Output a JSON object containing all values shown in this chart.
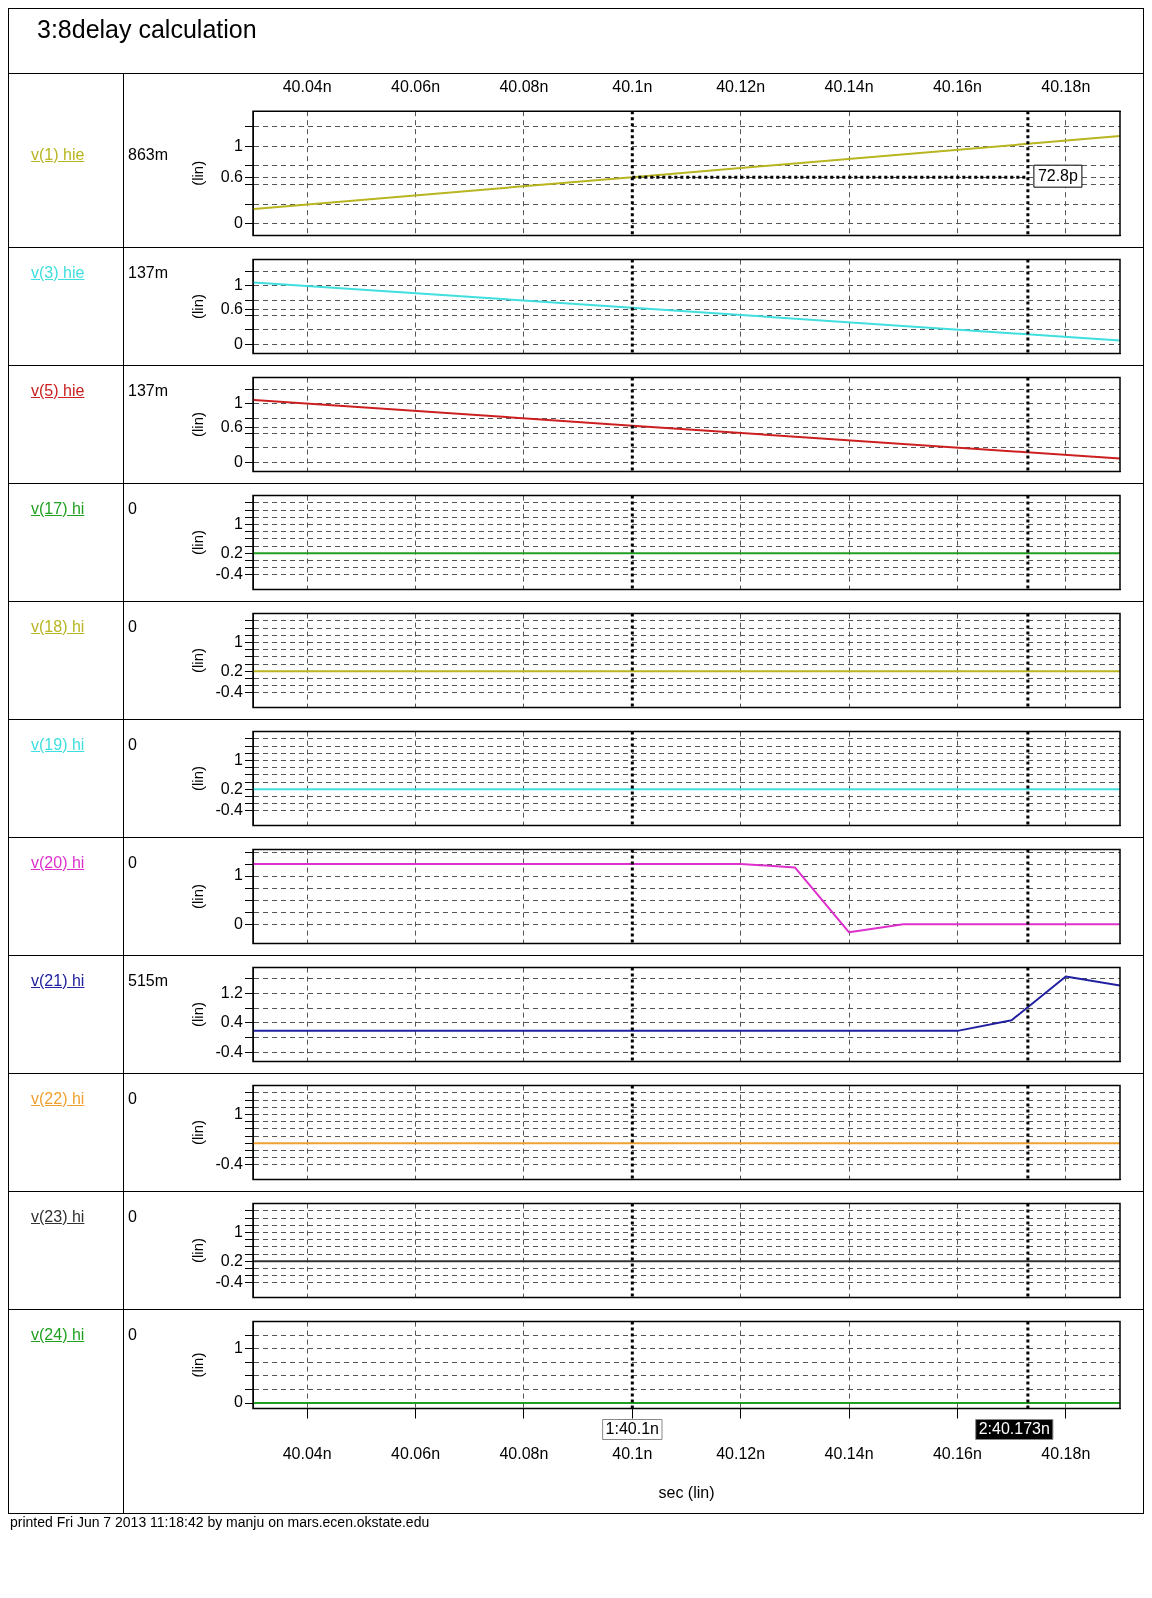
{
  "chart_data": [
    {
      "type": "line",
      "title": "3:8delay calculation",
      "ylabel": "(lin)",
      "xlim": [
        40.03,
        40.19
      ],
      "xticks": [
        {
          "value": 40.04,
          "label": null
        },
        {
          "value": 40.06,
          "label": null
        },
        {
          "value": 40.08,
          "label": null
        },
        {
          "value": 40.1,
          "label": null
        },
        {
          "value": 40.12,
          "label": null
        },
        {
          "value": 40.14,
          "label": null
        },
        {
          "value": 40.16,
          "label": null
        },
        {
          "value": 40.18,
          "label": null
        }
      ],
      "x2lim": [
        40.03,
        40.19
      ],
      "x2ticks": [
        {
          "value": 40.04,
          "label": "40.04n"
        },
        {
          "value": 40.06,
          "label": "40.06n"
        },
        {
          "value": 40.08,
          "label": "40.08n"
        },
        {
          "value": 40.1,
          "label": "40.1n"
        },
        {
          "value": 40.12,
          "label": "40.12n"
        },
        {
          "value": 40.14,
          "label": "40.14n"
        },
        {
          "value": 40.16,
          "label": "40.16n"
        },
        {
          "value": 40.18,
          "label": "40.18n"
        }
      ],
      "ylim": [
        -0.15,
        1.45
      ],
      "yticks": [
        0,
        {
          "value": 0.25,
          "label": null
        },
        {
          "value": 0.5,
          "label": null
        },
        0.6,
        {
          "value": 0.75,
          "label": null
        },
        1,
        {
          "value": 1.25,
          "label": null
        }
      ],
      "tick_labels": "y",
      "grid": true,
      "x": [
        40.03,
        40.1,
        40.19
      ],
      "series": [
        {
          "name": "v(1) hie",
          "color": "#b8b520",
          "values": [
            0.19,
            0.6,
            1.13
          ]
        }
      ],
      "ref_lines": [
        {
          "axis": "x",
          "value": 40.1,
          "line_style": "dotted",
          "color": "#000000"
        },
        {
          "axis": "x",
          "value": 40.173,
          "line_style": "dotted",
          "color": "#000000"
        }
      ],
      "annotations": [
        "863m",
        {
          "text": "72.8p",
          "x": 40.173,
          "y": 0.6
        }
      ]
    },
    {
      "type": "line",
      "ylabel": "(lin)",
      "xlim": [
        40.03,
        40.19
      ],
      "xticks": [
        {
          "value": 40.04,
          "label": null
        },
        {
          "value": 40.06,
          "label": null
        },
        {
          "value": 40.08,
          "label": null
        },
        {
          "value": 40.1,
          "label": null
        },
        {
          "value": 40.12,
          "label": null
        },
        {
          "value": 40.14,
          "label": null
        },
        {
          "value": 40.16,
          "label": null
        },
        {
          "value": 40.18,
          "label": null
        }
      ],
      "ylim": [
        -0.15,
        1.45
      ],
      "yticks": [
        0,
        {
          "value": 0.25,
          "label": null
        },
        {
          "value": 0.5,
          "label": null
        },
        0.6,
        {
          "value": 0.75,
          "label": null
        },
        1,
        {
          "value": 1.25,
          "label": null
        }
      ],
      "tick_labels": "y",
      "grid": true,
      "x": [
        40.03,
        40.1,
        40.19
      ],
      "series": [
        {
          "name": "v(3) hie",
          "color": "#40dede",
          "values": [
            1.06,
            0.63,
            0.07
          ]
        }
      ],
      "ref_lines": [
        {
          "axis": "x",
          "value": 40.1,
          "line_style": "dotted",
          "color": "#000000"
        },
        {
          "axis": "x",
          "value": 40.173,
          "line_style": "dotted",
          "color": "#000000"
        }
      ],
      "annotations": [
        "137m"
      ]
    },
    {
      "type": "line",
      "ylabel": "(lin)",
      "xlim": [
        40.03,
        40.19
      ],
      "xticks": [
        {
          "value": 40.04,
          "label": null
        },
        {
          "value": 40.06,
          "label": null
        },
        {
          "value": 40.08,
          "label": null
        },
        {
          "value": 40.1,
          "label": null
        },
        {
          "value": 40.12,
          "label": null
        },
        {
          "value": 40.14,
          "label": null
        },
        {
          "value": 40.16,
          "label": null
        },
        {
          "value": 40.18,
          "label": null
        }
      ],
      "ylim": [
        -0.15,
        1.45
      ],
      "yticks": [
        0,
        {
          "value": 0.25,
          "label": null
        },
        {
          "value": 0.5,
          "label": null
        },
        0.6,
        {
          "value": 0.75,
          "label": null
        },
        1,
        {
          "value": 1.25,
          "label": null
        }
      ],
      "tick_labels": "y",
      "grid": true,
      "x": [
        40.03,
        40.1,
        40.19
      ],
      "series": [
        {
          "name": "v(5) hie",
          "color": "#cc2020",
          "values": [
            1.07,
            0.63,
            0.07
          ]
        }
      ],
      "ref_lines": [
        {
          "axis": "x",
          "value": 40.1,
          "line_style": "dotted",
          "color": "#000000"
        },
        {
          "axis": "x",
          "value": 40.173,
          "line_style": "dotted",
          "color": "#000000"
        }
      ],
      "annotations": [
        "137m"
      ]
    },
    {
      "type": "line",
      "ylabel": "(lin)",
      "xlim": [
        40.03,
        40.19
      ],
      "xticks": [
        {
          "value": 40.04,
          "label": null
        },
        {
          "value": 40.06,
          "label": null
        },
        {
          "value": 40.08,
          "label": null
        },
        {
          "value": 40.1,
          "label": null
        },
        {
          "value": 40.12,
          "label": null
        },
        {
          "value": 40.14,
          "label": null
        },
        {
          "value": 40.16,
          "label": null
        },
        {
          "value": 40.18,
          "label": null
        }
      ],
      "ylim": [
        -0.8,
        1.8
      ],
      "yticks": [
        -0.4,
        {
          "value": -0.2,
          "label": null
        },
        {
          "value": 0,
          "label": null
        },
        0.2,
        {
          "value": 0.4,
          "label": null
        },
        {
          "value": 0.6,
          "label": null
        },
        {
          "value": 0.8,
          "label": null
        },
        1,
        {
          "value": 1.2,
          "label": null
        },
        {
          "value": 1.4,
          "label": null
        },
        {
          "value": 1.6,
          "label": null
        }
      ],
      "tick_labels": "y",
      "grid": true,
      "x": [
        40.03,
        40.19
      ],
      "series": [
        {
          "name": "v(17) hi",
          "color": "#20a020",
          "values": [
            0.2,
            0.2
          ]
        }
      ],
      "ref_lines": [
        {
          "axis": "x",
          "value": 40.1,
          "line_style": "dotted",
          "color": "#000000"
        },
        {
          "axis": "x",
          "value": 40.173,
          "line_style": "dotted",
          "color": "#000000"
        }
      ],
      "annotations": [
        "0"
      ]
    },
    {
      "type": "line",
      "ylabel": "(lin)",
      "xlim": [
        40.03,
        40.19
      ],
      "xticks": [
        {
          "value": 40.04,
          "label": null
        },
        {
          "value": 40.06,
          "label": null
        },
        {
          "value": 40.08,
          "label": null
        },
        {
          "value": 40.1,
          "label": null
        },
        {
          "value": 40.12,
          "label": null
        },
        {
          "value": 40.14,
          "label": null
        },
        {
          "value": 40.16,
          "label": null
        },
        {
          "value": 40.18,
          "label": null
        }
      ],
      "ylim": [
        -0.8,
        1.8
      ],
      "yticks": [
        -0.4,
        {
          "value": -0.2,
          "label": null
        },
        {
          "value": 0,
          "label": null
        },
        0.2,
        {
          "value": 0.4,
          "label": null
        },
        {
          "value": 0.6,
          "label": null
        },
        {
          "value": 0.8,
          "label": null
        },
        1,
        {
          "value": 1.2,
          "label": null
        },
        {
          "value": 1.4,
          "label": null
        },
        {
          "value": 1.6,
          "label": null
        }
      ],
      "tick_labels": "y",
      "grid": true,
      "x": [
        40.03,
        40.19
      ],
      "series": [
        {
          "name": "v(18) hi",
          "color": "#b8b520",
          "values": [
            0.2,
            0.2
          ]
        }
      ],
      "ref_lines": [
        {
          "axis": "x",
          "value": 40.1,
          "line_style": "dotted",
          "color": "#000000"
        },
        {
          "axis": "x",
          "value": 40.173,
          "line_style": "dotted",
          "color": "#000000"
        }
      ],
      "annotations": [
        "0"
      ]
    },
    {
      "type": "line",
      "ylabel": "(lin)",
      "xlim": [
        40.03,
        40.19
      ],
      "xticks": [
        {
          "value": 40.04,
          "label": null
        },
        {
          "value": 40.06,
          "label": null
        },
        {
          "value": 40.08,
          "label": null
        },
        {
          "value": 40.1,
          "label": null
        },
        {
          "value": 40.12,
          "label": null
        },
        {
          "value": 40.14,
          "label": null
        },
        {
          "value": 40.16,
          "label": null
        },
        {
          "value": 40.18,
          "label": null
        }
      ],
      "ylim": [
        -0.8,
        1.8
      ],
      "yticks": [
        -0.4,
        {
          "value": -0.2,
          "label": null
        },
        {
          "value": 0,
          "label": null
        },
        0.2,
        {
          "value": 0.4,
          "label": null
        },
        {
          "value": 0.6,
          "label": null
        },
        {
          "value": 0.8,
          "label": null
        },
        1,
        {
          "value": 1.2,
          "label": null
        },
        {
          "value": 1.4,
          "label": null
        },
        {
          "value": 1.6,
          "label": null
        }
      ],
      "tick_labels": "y",
      "grid": true,
      "x": [
        40.03,
        40.19
      ],
      "series": [
        {
          "name": "v(19) hi",
          "color": "#40dede",
          "values": [
            0.2,
            0.2
          ]
        }
      ],
      "ref_lines": [
        {
          "axis": "x",
          "value": 40.1,
          "line_style": "dotted",
          "color": "#000000"
        },
        {
          "axis": "x",
          "value": 40.173,
          "line_style": "dotted",
          "color": "#000000"
        }
      ],
      "annotations": [
        "0"
      ]
    },
    {
      "type": "line",
      "ylabel": "(lin)",
      "xlim": [
        40.03,
        40.19
      ],
      "xticks": [
        {
          "value": 40.04,
          "label": null
        },
        {
          "value": 40.06,
          "label": null
        },
        {
          "value": 40.08,
          "label": null
        },
        {
          "value": 40.1,
          "label": null
        },
        {
          "value": 40.12,
          "label": null
        },
        {
          "value": 40.14,
          "label": null
        },
        {
          "value": 40.16,
          "label": null
        },
        {
          "value": 40.18,
          "label": null
        }
      ],
      "ylim": [
        -0.4,
        1.55
      ],
      "yticks": [
        0,
        {
          "value": 0.25,
          "label": null
        },
        {
          "value": 0.5,
          "label": null
        },
        {
          "value": 0.75,
          "label": null
        },
        1,
        {
          "value": 1.25,
          "label": null
        },
        {
          "value": 1.5,
          "label": null
        }
      ],
      "tick_labels": "y",
      "grid": true,
      "x": [
        40.03,
        40.12,
        40.13,
        40.14,
        40.15,
        40.19
      ],
      "series": [
        {
          "name": "v(20) hi",
          "color": "#dd30cc",
          "values": [
            1.25,
            1.25,
            1.18,
            -0.17,
            0,
            0
          ]
        }
      ],
      "ref_lines": [
        {
          "axis": "x",
          "value": 40.1,
          "line_style": "dotted",
          "color": "#000000"
        },
        {
          "axis": "x",
          "value": 40.173,
          "line_style": "dotted",
          "color": "#000000"
        }
      ],
      "annotations": [
        "0"
      ]
    },
    {
      "type": "line",
      "ylabel": "(lin)",
      "xlim": [
        40.03,
        40.19
      ],
      "xticks": [
        {
          "value": 40.04,
          "label": null
        },
        {
          "value": 40.06,
          "label": null
        },
        {
          "value": 40.08,
          "label": null
        },
        {
          "value": 40.1,
          "label": null
        },
        {
          "value": 40.12,
          "label": null
        },
        {
          "value": 40.14,
          "label": null
        },
        {
          "value": 40.16,
          "label": null
        },
        {
          "value": 40.18,
          "label": null
        }
      ],
      "ylim": [
        -0.65,
        1.9
      ],
      "yticks": [
        -0.4,
        {
          "value": 0,
          "label": null
        },
        0.4,
        {
          "value": 0.8,
          "label": null
        },
        1.2,
        {
          "value": 1.6,
          "label": null
        }
      ],
      "tick_labels": "y",
      "grid": true,
      "x": [
        40.03,
        40.16,
        40.17,
        40.18,
        40.19
      ],
      "series": [
        {
          "name": "v(21) hi",
          "color": "#2020a0",
          "values": [
            0.18,
            0.18,
            0.47,
            1.66,
            1.41
          ]
        }
      ],
      "ref_lines": [
        {
          "axis": "x",
          "value": 40.1,
          "line_style": "dotted",
          "color": "#000000"
        },
        {
          "axis": "x",
          "value": 40.173,
          "line_style": "dotted",
          "color": "#000000"
        }
      ],
      "annotations": [
        "515m"
      ]
    },
    {
      "type": "line",
      "ylabel": "(lin)",
      "xlim": [
        40.03,
        40.19
      ],
      "xticks": [
        {
          "value": 40.04,
          "label": null
        },
        {
          "value": 40.06,
          "label": null
        },
        {
          "value": 40.08,
          "label": null
        },
        {
          "value": 40.1,
          "label": null
        },
        {
          "value": 40.12,
          "label": null
        },
        {
          "value": 40.14,
          "label": null
        },
        {
          "value": 40.16,
          "label": null
        },
        {
          "value": 40.18,
          "label": null
        }
      ],
      "ylim": [
        -0.8,
        1.8
      ],
      "yticks": [
        -0.4,
        {
          "value": -0.2,
          "label": null
        },
        {
          "value": 0,
          "label": null
        },
        {
          "value": 0.2,
          "label": null
        },
        {
          "value": 0.4,
          "label": null
        },
        {
          "value": 0.6,
          "label": null
        },
        {
          "value": 0.8,
          "label": null
        },
        1,
        {
          "value": 1.2,
          "label": null
        },
        {
          "value": 1.4,
          "label": null
        },
        {
          "value": 1.6,
          "label": null
        }
      ],
      "tick_labels": "y",
      "grid": true,
      "x": [
        40.03,
        40.19
      ],
      "series": [
        {
          "name": "v(22) hi",
          "color": "#f0a030",
          "values": [
            0.2,
            0.2
          ]
        }
      ],
      "ref_lines": [
        {
          "axis": "x",
          "value": 40.1,
          "line_style": "dotted",
          "color": "#000000"
        },
        {
          "axis": "x",
          "value": 40.173,
          "line_style": "dotted",
          "color": "#000000"
        }
      ],
      "annotations": [
        "0"
      ]
    },
    {
      "type": "line",
      "ylabel": "(lin)",
      "xlim": [
        40.03,
        40.19
      ],
      "xticks": [
        {
          "value": 40.04,
          "label": null
        },
        {
          "value": 40.06,
          "label": null
        },
        {
          "value": 40.08,
          "label": null
        },
        {
          "value": 40.1,
          "label": null
        },
        {
          "value": 40.12,
          "label": null
        },
        {
          "value": 40.14,
          "label": null
        },
        {
          "value": 40.16,
          "label": null
        },
        {
          "value": 40.18,
          "label": null
        }
      ],
      "ylim": [
        -0.8,
        1.8
      ],
      "yticks": [
        -0.4,
        {
          "value": -0.2,
          "label": null
        },
        {
          "value": 0,
          "label": null
        },
        0.2,
        {
          "value": 0.4,
          "label": null
        },
        {
          "value": 0.6,
          "label": null
        },
        {
          "value": 0.8,
          "label": null
        },
        1,
        {
          "value": 1.2,
          "label": null
        },
        {
          "value": 1.4,
          "label": null
        },
        {
          "value": 1.6,
          "label": null
        }
      ],
      "tick_labels": "y",
      "grid": true,
      "x": [
        40.03,
        40.19
      ],
      "series": [
        {
          "name": "v(23) hi",
          "color": "#303030",
          "values": [
            0.2,
            0.2
          ]
        }
      ],
      "ref_lines": [
        {
          "axis": "x",
          "value": 40.1,
          "line_style": "dotted",
          "color": "#000000"
        },
        {
          "axis": "x",
          "value": 40.173,
          "line_style": "dotted",
          "color": "#000000"
        }
      ],
      "annotations": [
        "0"
      ]
    },
    {
      "type": "line",
      "ylabel": "(lin)",
      "xlabel": "sec (lin)",
      "xlim": [
        40.03,
        40.19
      ],
      "xticks": [
        {
          "value": 40.04,
          "label": "40.04n"
        },
        {
          "value": 40.06,
          "label": "40.06n"
        },
        {
          "value": 40.08,
          "label": "40.08n"
        },
        {
          "value": 40.1,
          "label": "40.1n"
        },
        {
          "value": 40.12,
          "label": "40.12n"
        },
        {
          "value": 40.14,
          "label": "40.14n"
        },
        {
          "value": 40.16,
          "label": "40.16n"
        },
        {
          "value": 40.18,
          "label": "40.18n"
        }
      ],
      "ylim": [
        -0.1,
        1.5
      ],
      "yticks": [
        0,
        {
          "value": 0.25,
          "label": null
        },
        {
          "value": 0.5,
          "label": null
        },
        {
          "value": 0.75,
          "label": null
        },
        1,
        {
          "value": 1.25,
          "label": null
        }
      ],
      "grid": true,
      "x": [
        40.03,
        40.19
      ],
      "series": [
        {
          "name": "v(24) hi",
          "color": "#20a020",
          "values": [
            0,
            0
          ]
        }
      ],
      "ref_lines": [
        {
          "axis": "x",
          "value": 40.1,
          "label": "1:40.1n",
          "line_style": "dotted",
          "color": "#000000"
        },
        {
          "axis": "x",
          "value": 40.173,
          "label": "2:40.173n",
          "line_style": "dotted",
          "color": "#000000"
        }
      ],
      "annotations": [
        "0",
        "printed Fri Jun  7 2013 11:18:42 by manju on mars.ecen.okstate.edu"
      ]
    }
  ]
}
